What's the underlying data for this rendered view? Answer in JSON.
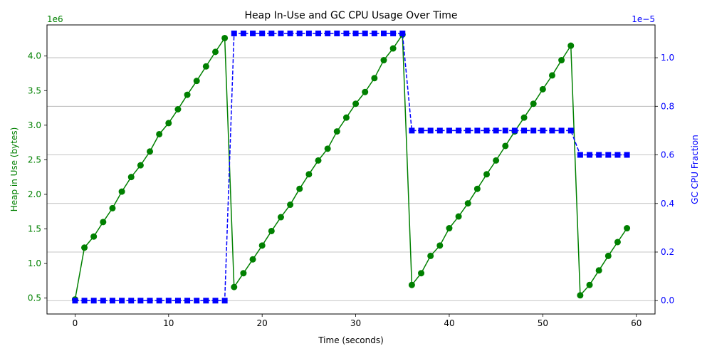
{
  "chart_data": {
    "type": "line",
    "title": "Heap In-Use and GC CPU Usage Over Time",
    "xlabel": "Time (seconds)",
    "ylabel_left": "Heap in Use (bytes)",
    "ylabel_right": "GC CPU Fraction",
    "left_offset_text": "1e6",
    "right_offset_text": "1e−5",
    "xlim": [
      -3,
      62
    ],
    "ylim_left": [
      270000,
      4450000
    ],
    "ylim_right": [
      -0.055,
      1.135
    ],
    "x_ticks": [
      0,
      10,
      20,
      30,
      40,
      50,
      60
    ],
    "y_left_ticks": [
      0.5,
      1.0,
      1.5,
      2.0,
      2.5,
      3.0,
      3.5,
      4.0
    ],
    "y_right_ticks": [
      0.0,
      0.2,
      0.4,
      0.6,
      0.8,
      1.0
    ],
    "grid": "right-axis horizontal",
    "colors": {
      "left": "#008000",
      "right": "#0000ff"
    },
    "series": [
      {
        "axis": "left",
        "color": "#008000",
        "style": "solid",
        "marker": "circle",
        "x": [
          0,
          1,
          2,
          3,
          4,
          5,
          6,
          7,
          8,
          9,
          10,
          11,
          12,
          13,
          14,
          15,
          16,
          17,
          18,
          19,
          20,
          21,
          22,
          23,
          24,
          25,
          26,
          27,
          28,
          29,
          30,
          31,
          32,
          33,
          34,
          35,
          36,
          37,
          38,
          39,
          40,
          41,
          42,
          43,
          44,
          45,
          46,
          47,
          48,
          49,
          50,
          51,
          52,
          53,
          54,
          55,
          56,
          57,
          58,
          59
        ],
        "y": [
          480000,
          1230000,
          1390000,
          1600000,
          1800000,
          2040000,
          2250000,
          2420000,
          2620000,
          2870000,
          3030000,
          3230000,
          3440000,
          3640000,
          3850000,
          4060000,
          4260000,
          660000,
          860000,
          1060000,
          1260000,
          1470000,
          1670000,
          1850000,
          2080000,
          2290000,
          2490000,
          2660000,
          2910000,
          3110000,
          3310000,
          3480000,
          3680000,
          3940000,
          4110000,
          4310000,
          690000,
          860000,
          1110000,
          1260000,
          1510000,
          1680000,
          1870000,
          2080000,
          2290000,
          2490000,
          2700000,
          2910000,
          3110000,
          3310000,
          3520000,
          3720000,
          3940000,
          4150000,
          540000,
          690000,
          900000,
          1110000,
          1310000,
          1510000
        ]
      },
      {
        "axis": "right",
        "color": "#0000ff",
        "style": "dashed",
        "marker": "square",
        "x": [
          0,
          1,
          2,
          3,
          4,
          5,
          6,
          7,
          8,
          9,
          10,
          11,
          12,
          13,
          14,
          15,
          16,
          17,
          18,
          19,
          20,
          21,
          22,
          23,
          24,
          25,
          26,
          27,
          28,
          29,
          30,
          31,
          32,
          33,
          34,
          35,
          36,
          37,
          38,
          39,
          40,
          41,
          42,
          43,
          44,
          45,
          46,
          47,
          48,
          49,
          50,
          51,
          52,
          53,
          54,
          55,
          56,
          57,
          58,
          59
        ],
        "y": [
          0,
          0,
          0,
          0,
          0,
          0,
          0,
          0,
          0,
          0,
          0,
          0,
          0,
          0,
          0,
          0,
          0,
          1.1,
          1.1,
          1.1,
          1.1,
          1.1,
          1.1,
          1.1,
          1.1,
          1.1,
          1.1,
          1.1,
          1.1,
          1.1,
          1.1,
          1.1,
          1.1,
          1.1,
          1.1,
          1.1,
          0.7,
          0.7,
          0.7,
          0.7,
          0.7,
          0.7,
          0.7,
          0.7,
          0.7,
          0.7,
          0.7,
          0.7,
          0.7,
          0.7,
          0.7,
          0.7,
          0.7,
          0.7,
          0.6,
          0.6,
          0.6,
          0.6,
          0.6,
          0.6
        ]
      }
    ]
  }
}
